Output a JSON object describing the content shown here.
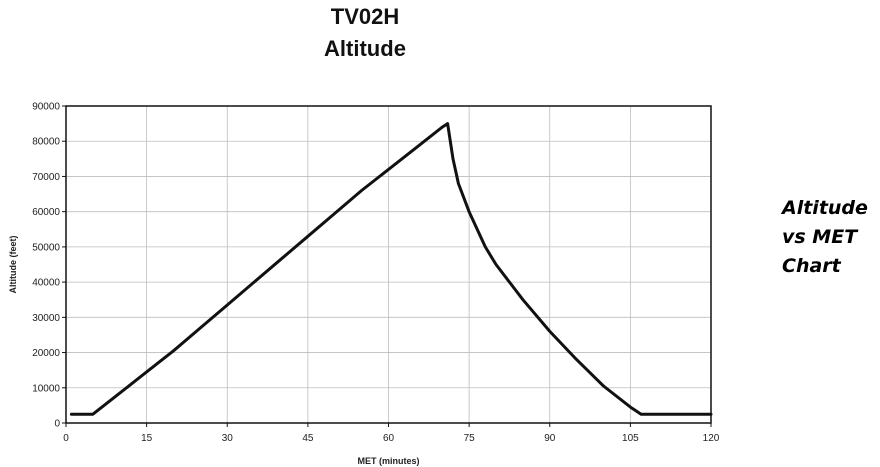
{
  "chart_data": {
    "type": "line",
    "title": "TV02H",
    "subtitle": "Altitude",
    "xlabel": "MET (minutes)",
    "ylabel": "Altitude (feet)",
    "xlim": [
      0,
      120
    ],
    "ylim": [
      0,
      90000
    ],
    "x_ticks": [
      "0",
      "15",
      "30",
      "45",
      "60",
      "75",
      "90",
      "105",
      "120"
    ],
    "y_ticks": [
      "0",
      "10000",
      "20000",
      "30000",
      "40000",
      "50000",
      "60000",
      "70000",
      "80000",
      "90000"
    ],
    "grid": true,
    "line_color": "#111111",
    "series": [
      {
        "x": [
          1,
          5,
          10,
          15,
          20,
          25,
          30,
          35,
          40,
          45,
          50,
          55,
          60,
          65,
          70,
          71,
          72,
          73,
          75,
          78,
          80,
          85,
          90,
          95,
          100,
          105,
          107,
          120
        ],
        "y": [
          2500,
          2500,
          8500,
          14500,
          20500,
          27000,
          33500,
          40000,
          46500,
          53000,
          59500,
          66000,
          72000,
          78000,
          84000,
          85000,
          75000,
          68000,
          60000,
          50000,
          45000,
          35000,
          26000,
          18000,
          10500,
          4500,
          2500,
          2500
        ]
      }
    ]
  },
  "caption": {
    "line1": "Altitude",
    "line2": "vs MET",
    "line3": "Chart"
  }
}
